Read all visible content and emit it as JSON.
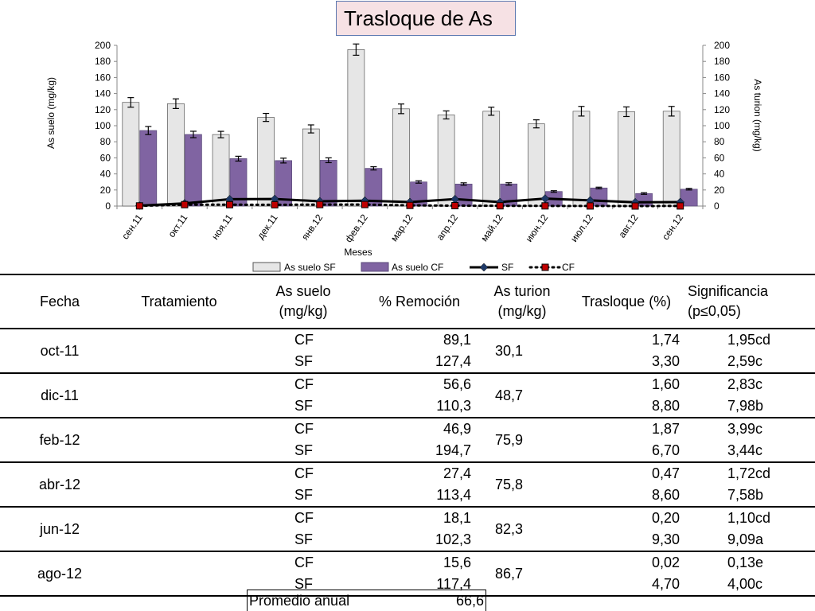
{
  "chart_data": {
    "type": "bar",
    "title": "Trasloque de As",
    "xlabel": "Meses",
    "ylabel_left": "As suelo (mg/kg)",
    "ylabel_right": "As turion (mg/kg)",
    "ylim_left": [
      0,
      200
    ],
    "ylim_right": [
      0,
      200
    ],
    "yticks_left": [
      "200",
      "180",
      "160",
      "140",
      "120",
      "100",
      "80",
      "60",
      "40",
      "20",
      "0"
    ],
    "yticks_right": [
      "200",
      "180",
      "160",
      "140",
      "120",
      "100",
      "80",
      "60",
      "40",
      "20",
      "0"
    ],
    "categories": [
      "сен.11",
      "окт.11",
      "ноя.11",
      "дек.11",
      "янв.12",
      "фев.12",
      "мар.12",
      "апр.12",
      "май.12",
      "июн.12",
      "июл.12",
      "авг.12",
      "сен.12"
    ],
    "series": [
      {
        "name": "As suelo SF",
        "kind": "bar",
        "color": "#e6e6e6",
        "values": [
          129,
          127.4,
          89,
          110.3,
          96,
          194.7,
          121,
          113.4,
          118,
          102.3,
          118,
          117.4,
          118
        ],
        "errors": [
          6,
          6,
          4,
          5,
          5,
          7,
          6,
          5,
          5,
          5,
          6,
          6,
          6
        ]
      },
      {
        "name": "As suelo CF",
        "kind": "bar",
        "color": "#8064a2",
        "values": [
          94,
          89.1,
          59,
          56.6,
          57,
          46.9,
          30,
          27.4,
          27.5,
          18.1,
          22.5,
          15.6,
          21
        ],
        "errors": [
          5,
          4,
          3,
          3,
          3,
          2,
          1.5,
          1.5,
          1.5,
          1,
          1,
          1,
          1
        ]
      },
      {
        "name": "SF",
        "kind": "line",
        "color": "#000000",
        "values": [
          0.5,
          3.3,
          8.5,
          8.8,
          6,
          6.7,
          5,
          8.6,
          5,
          9.3,
          7,
          4.7,
          5
        ]
      },
      {
        "name": "CF",
        "kind": "line",
        "color": "#000000",
        "values": [
          0.2,
          1.74,
          1.7,
          1.6,
          1.8,
          1.87,
          0.8,
          0.47,
          0.3,
          0.2,
          0.1,
          0.02,
          0.1
        ]
      }
    ],
    "legend_position": "bottom",
    "grid": false
  },
  "table": {
    "headers": {
      "fecha": "Fecha",
      "tratamiento": "Tratamiento",
      "as_suelo_1": "As suelo",
      "as_suelo_2": "(mg/kg)",
      "remocion": "% Remoción",
      "as_turion_1": "As turion",
      "as_turion_2": "(mg/kg)",
      "trasloque": "Trasloque (%)",
      "sig_1": "Significancia",
      "sig_2": "(p≤0,05)"
    },
    "groups": [
      {
        "fecha": "oct-11",
        "remocion": "30,1",
        "rows": [
          {
            "trat": "CF",
            "suelo": "89,1",
            "turion": "1,74",
            "sig": "1,95cd"
          },
          {
            "trat": "SF",
            "suelo": "127,4",
            "turion": "3,30",
            "sig": "2,59c"
          }
        ]
      },
      {
        "fecha": "dic-11",
        "remocion": "48,7",
        "rows": [
          {
            "trat": "CF",
            "suelo": "56,6",
            "turion": "1,60",
            "sig": "2,83c"
          },
          {
            "trat": "SF",
            "suelo": "110,3",
            "turion": "8,80",
            "sig": "7,98b"
          }
        ]
      },
      {
        "fecha": "feb-12",
        "remocion": "75,9",
        "rows": [
          {
            "trat": "CF",
            "suelo": "46,9",
            "turion": "1,87",
            "sig": "3,99c"
          },
          {
            "trat": "SF",
            "suelo": "194,7",
            "turion": "6,70",
            "sig": "3,44c"
          }
        ]
      },
      {
        "fecha": "abr-12",
        "remocion": "75,8",
        "rows": [
          {
            "trat": "CF",
            "suelo": "27,4",
            "turion": "0,47",
            "sig": "1,72cd"
          },
          {
            "trat": "SF",
            "suelo": "113,4",
            "turion": "8,60",
            "sig": "7,58b"
          }
        ]
      },
      {
        "fecha": "jun-12",
        "remocion": "82,3",
        "rows": [
          {
            "trat": "CF",
            "suelo": "18,1",
            "turion": "0,20",
            "sig": "1,10cd"
          },
          {
            "trat": "SF",
            "suelo": "102,3",
            "turion": "9,30",
            "sig": "9,09a"
          }
        ]
      },
      {
        "fecha": "ago-12",
        "remocion": "86,7",
        "rows": [
          {
            "trat": "CF",
            "suelo": "15,6",
            "turion": "0,02",
            "sig": "0,13e"
          },
          {
            "trat": "SF",
            "suelo": "117,4",
            "turion": "4,70",
            "sig": "4,00c"
          }
        ]
      }
    ],
    "promedio_label": "Promedio anual",
    "promedio_value": "66,6"
  }
}
